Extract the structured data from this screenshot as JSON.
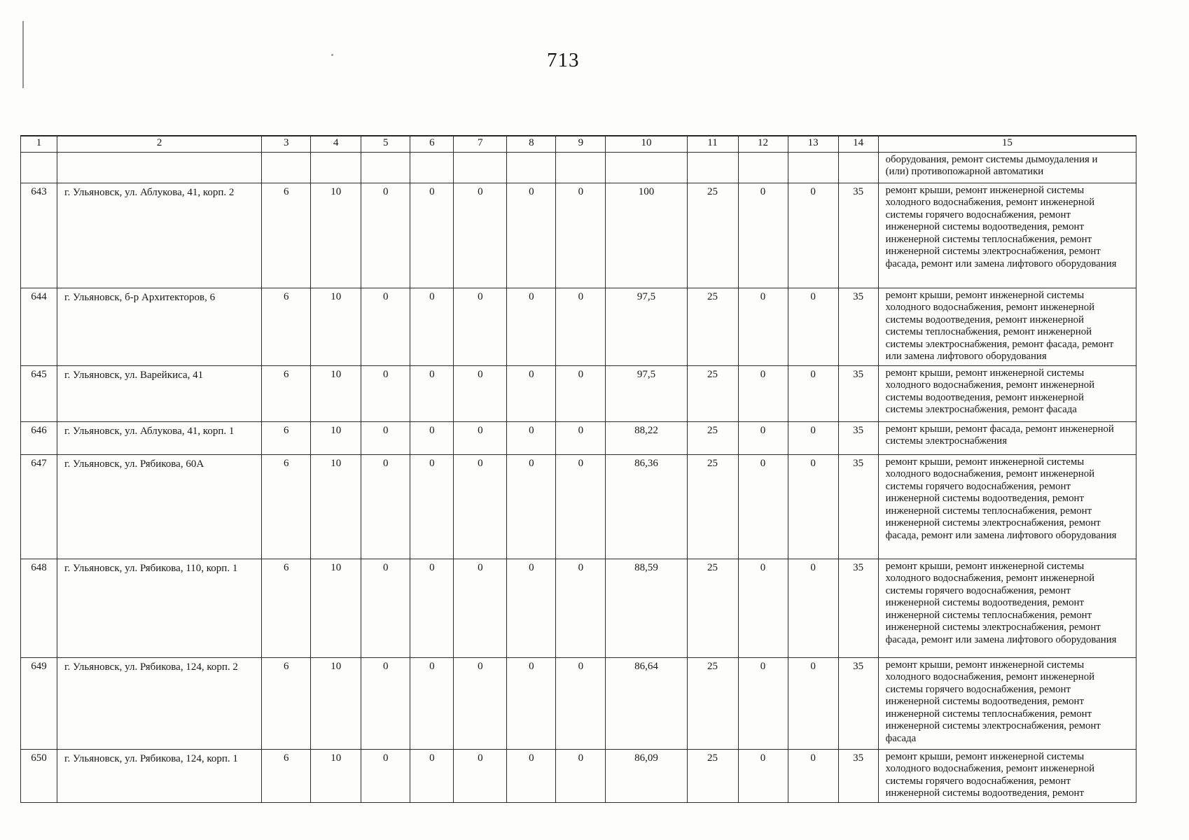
{
  "page": {
    "number": "713"
  },
  "table": {
    "column_headers": [
      "1",
      "2",
      "3",
      "4",
      "5",
      "6",
      "7",
      "8",
      "9",
      "10",
      "11",
      "12",
      "13",
      "14",
      "15"
    ],
    "continuation_row": {
      "works": "оборудования, ремонт системы дымоудаления и (или) противопожарной автоматики"
    },
    "rows": [
      {
        "num": "643",
        "address": "г. Ульяновск, ул. Аблукова, 41, корп. 2",
        "values": [
          "6",
          "10",
          "0",
          "0",
          "0",
          "0",
          "0",
          "100",
          "25",
          "0",
          "0",
          "35"
        ],
        "works": "ремонт крыши, ремонт инженерной системы холодного водоснабжения, ремонт инженерной системы горячего водоснабжения, ремонт инженерной системы водоотведения, ремонт инженерной системы теплоснабжения, ремонт инженерной системы электроснабжения, ремонт фасада, ремонт или замена лифтового оборудования"
      },
      {
        "num": "644",
        "address": "г. Ульяновск, б-р Архитекторов, 6",
        "values": [
          "6",
          "10",
          "0",
          "0",
          "0",
          "0",
          "0",
          "97,5",
          "25",
          "0",
          "0",
          "35"
        ],
        "works": "ремонт крыши, ремонт инженерной системы холодного водоснабжения, ремонт инженерной системы водоотведения, ремонт инженерной системы теплоснабжения, ремонт инженерной системы электроснабжения, ремонт фасада, ремонт или замена лифтового оборудования"
      },
      {
        "num": "645",
        "address": "г. Ульяновск, ул. Варейкиса, 41",
        "values": [
          "6",
          "10",
          "0",
          "0",
          "0",
          "0",
          "0",
          "97,5",
          "25",
          "0",
          "0",
          "35"
        ],
        "works": "ремонт крыши, ремонт инженерной системы холодного водоснабжения, ремонт инженерной системы водоотведения, ремонт инженерной системы электроснабжения, ремонт фасада"
      },
      {
        "num": "646",
        "address": "г. Ульяновск, ул. Аблукова, 41, корп. 1",
        "values": [
          "6",
          "10",
          "0",
          "0",
          "0",
          "0",
          "0",
          "88,22",
          "25",
          "0",
          "0",
          "35"
        ],
        "works": "ремонт крыши, ремонт фасада, ремонт инженерной системы электроснабжения"
      },
      {
        "num": "647",
        "address": "г. Ульяновск, ул. Рябикова, 60А",
        "values": [
          "6",
          "10",
          "0",
          "0",
          "0",
          "0",
          "0",
          "86,36",
          "25",
          "0",
          "0",
          "35"
        ],
        "works": "ремонт крыши, ремонт инженерной системы холодного водоснабжения, ремонт инженерной системы горячего водоснабжения, ремонт инженерной системы водоотведения, ремонт инженерной системы теплоснабжения, ремонт инженерной системы электроснабжения, ремонт фасада, ремонт или замена лифтового оборудования"
      },
      {
        "num": "648",
        "address": "г. Ульяновск, ул. Рябикова, 110, корп. 1",
        "values": [
          "6",
          "10",
          "0",
          "0",
          "0",
          "0",
          "0",
          "88,59",
          "25",
          "0",
          "0",
          "35"
        ],
        "works": "ремонт крыши, ремонт инженерной системы холодного водоснабжения, ремонт инженерной системы горячего водоснабжения, ремонт инженерной системы водоотведения, ремонт инженерной системы теплоснабжения, ремонт инженерной системы электроснабжения, ремонт фасада, ремонт или замена лифтового оборудования"
      },
      {
        "num": "649",
        "address": "г. Ульяновск, ул. Рябикова, 124, корп. 2",
        "values": [
          "6",
          "10",
          "0",
          "0",
          "0",
          "0",
          "0",
          "86,64",
          "25",
          "0",
          "0",
          "35"
        ],
        "works": "ремонт крыши, ремонт инженерной системы холодного водоснабжения, ремонт инженерной системы горячего водоснабжения, ремонт инженерной системы водоотведения, ремонт инженерной системы теплоснабжения, ремонт инженерной системы электроснабжения, ремонт фасада"
      },
      {
        "num": "650",
        "address": "г. Ульяновск, ул. Рябикова, 124, корп. 1",
        "values": [
          "6",
          "10",
          "0",
          "0",
          "0",
          "0",
          "0",
          "86,09",
          "25",
          "0",
          "0",
          "35"
        ],
        "works": "ремонт крыши, ремонт инженерной системы холодного водоснабжения, ремонт инженерной системы горячего водоснабжения, ремонт инженерной системы водоотведения, ремонт"
      }
    ]
  }
}
